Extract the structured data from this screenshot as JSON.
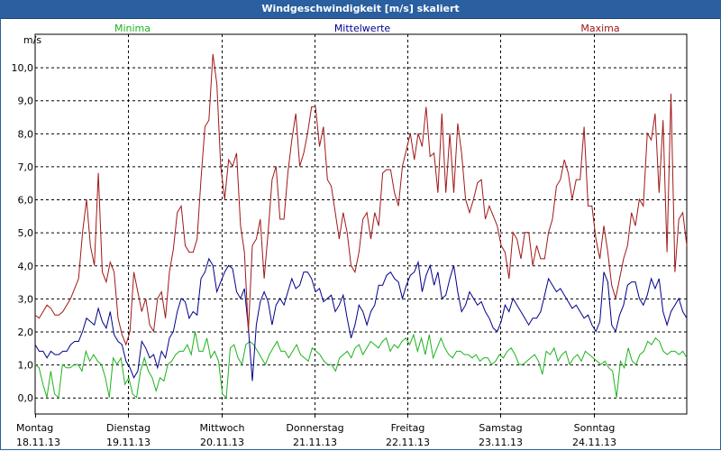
{
  "window": {
    "title": "Windgeschwindigkeit [m/s] skaliert"
  },
  "chart_data": {
    "type": "line",
    "title": "Windgeschwindigkeit [m/s] skaliert",
    "ylabel": "m/s",
    "ylim": [
      -0.5,
      11
    ],
    "yticks": [
      "0,0",
      "1,0",
      "2,0",
      "3,0",
      "4,0",
      "5,0",
      "6,0",
      "7,0",
      "8,0",
      "9,0",
      "10,0"
    ],
    "xlim": [
      0,
      7
    ],
    "days": [
      {
        "name": "Montag",
        "date": "18.11.13"
      },
      {
        "name": "Dienstag",
        "date": "19.11.13"
      },
      {
        "name": "Mittwoch",
        "date": "20.11.13"
      },
      {
        "name": "Donnerstag",
        "date": "21.11.13"
      },
      {
        "name": "Freitag",
        "date": "22.11.13"
      },
      {
        "name": "Samstag",
        "date": "23.11.13"
      },
      {
        "name": "Sonntag",
        "date": "24.11.13"
      }
    ],
    "grid": true,
    "series": [
      {
        "name": "Minima",
        "color": "#1db31d",
        "values": [
          1.0,
          0.9,
          0.4,
          0.0,
          0.8,
          0.1,
          0.0,
          1.0,
          0.9,
          0.9,
          1.0,
          1.0,
          0.8,
          1.4,
          1.1,
          1.3,
          1.1,
          1.0,
          0.6,
          0.0,
          1.2,
          1.0,
          1.2,
          0.4,
          0.6,
          0.1,
          0.0,
          0.8,
          1.2,
          0.8,
          0.6,
          0.2,
          0.6,
          0.5,
          1.0,
          1.1,
          1.3,
          1.4,
          1.4,
          1.6,
          1.3,
          2.0,
          1.4,
          1.4,
          1.8,
          1.2,
          1.4,
          1.1,
          0.1,
          0.0,
          1.5,
          1.6,
          1.2,
          1.0,
          1.6,
          1.7,
          1.6,
          1.4,
          1.2,
          1.0,
          1.3,
          1.5,
          1.7,
          1.4,
          1.4,
          1.2,
          1.4,
          1.6,
          1.3,
          1.2,
          1.1,
          1.5,
          1.4,
          1.3,
          1.1,
          1.0,
          1.0,
          0.8,
          1.2,
          1.3,
          1.4,
          1.2,
          1.5,
          1.6,
          1.3,
          1.5,
          1.7,
          1.6,
          1.5,
          1.7,
          1.8,
          1.4,
          1.6,
          1.5,
          1.7,
          1.8,
          1.6,
          1.9,
          1.4,
          1.8,
          1.3,
          1.9,
          1.2,
          1.5,
          1.8,
          1.5,
          1.3,
          1.2,
          1.4,
          1.4,
          1.3,
          1.3,
          1.2,
          1.3,
          1.1,
          1.2,
          1.2,
          1.0,
          1.1,
          1.3,
          1.2,
          1.4,
          1.5,
          1.3,
          1.0,
          1.0,
          1.1,
          1.2,
          1.3,
          1.1,
          0.7,
          1.4,
          1.3,
          1.5,
          1.1,
          1.3,
          1.4,
          1.0,
          1.2,
          1.3,
          1.1,
          1.4,
          1.3,
          1.2,
          1.1,
          1.0,
          1.1,
          0.9,
          0.8,
          0.0,
          1.1,
          0.9,
          1.5,
          1.1,
          1.0,
          1.3,
          1.4,
          1.7,
          1.6,
          1.8,
          1.7,
          1.4,
          1.3,
          1.4,
          1.4,
          1.3,
          1.4,
          1.2
        ]
      },
      {
        "name": "Mittelwerte",
        "color": "#00008b",
        "values": [
          1.6,
          1.4,
          1.4,
          1.2,
          1.4,
          1.3,
          1.3,
          1.4,
          1.4,
          1.6,
          1.7,
          1.7,
          2.0,
          2.4,
          2.3,
          2.2,
          2.7,
          2.3,
          2.1,
          2.6,
          1.9,
          1.7,
          1.6,
          1.1,
          0.9,
          0.6,
          0.8,
          1.7,
          1.5,
          1.2,
          1.3,
          0.9,
          1.4,
          1.2,
          1.8,
          2.0,
          2.6,
          3.0,
          2.9,
          2.4,
          2.6,
          2.5,
          3.6,
          3.8,
          4.2,
          4.0,
          3.2,
          3.5,
          3.8,
          4.0,
          3.9,
          3.2,
          3.0,
          3.3,
          2.1,
          0.5,
          2.2,
          2.9,
          3.2,
          2.9,
          2.2,
          2.8,
          3.0,
          2.8,
          3.2,
          3.6,
          3.3,
          3.4,
          3.8,
          3.8,
          3.6,
          3.2,
          3.3,
          2.9,
          3.0,
          3.1,
          2.6,
          2.8,
          3.1,
          2.4,
          1.8,
          2.2,
          2.8,
          2.6,
          2.2,
          2.6,
          2.8,
          3.4,
          3.4,
          3.7,
          3.8,
          3.6,
          3.5,
          3.0,
          3.4,
          3.7,
          3.8,
          4.1,
          3.2,
          3.7,
          4.0,
          3.4,
          3.8,
          3.0,
          3.1,
          3.6,
          4.0,
          3.2,
          2.6,
          2.8,
          3.2,
          3.0,
          2.8,
          2.9,
          2.6,
          2.4,
          2.1,
          2.0,
          2.3,
          2.8,
          2.6,
          3.0,
          2.8,
          2.6,
          2.4,
          2.2,
          2.4,
          2.4,
          2.6,
          3.1,
          3.6,
          3.4,
          3.2,
          3.3,
          3.1,
          2.9,
          2.7,
          2.8,
          2.6,
          2.4,
          2.5,
          2.2,
          2.0,
          2.3,
          3.8,
          3.5,
          2.2,
          2.0,
          2.5,
          2.8,
          3.4,
          3.5,
          3.5,
          3.0,
          2.8,
          3.1,
          3.6,
          3.3,
          3.6,
          2.6,
          2.2,
          2.6,
          2.8,
          3.0,
          2.6,
          2.4
        ]
      },
      {
        "name": "Maxima",
        "color": "#a01818",
        "values": [
          2.5,
          2.4,
          2.6,
          2.8,
          2.7,
          2.5,
          2.5,
          2.6,
          2.8,
          3.0,
          3.3,
          3.6,
          5.0,
          6.0,
          4.6,
          4.0,
          6.8,
          3.8,
          3.5,
          4.1,
          3.8,
          2.4,
          1.9,
          1.6,
          2.0,
          3.8,
          3.2,
          2.6,
          3.0,
          2.2,
          2.0,
          3.0,
          3.2,
          2.4,
          3.8,
          4.5,
          5.6,
          5.8,
          4.6,
          4.4,
          4.4,
          4.8,
          6.6,
          8.2,
          8.4,
          10.4,
          9.5,
          7.0,
          6.0,
          7.2,
          7.0,
          7.4,
          5.2,
          4.4,
          2.0,
          4.6,
          4.8,
          5.4,
          3.6,
          5.0,
          6.6,
          7.0,
          5.4,
          5.4,
          6.8,
          7.8,
          8.6,
          7.0,
          7.4,
          8.0,
          8.8,
          8.8,
          7.6,
          8.2,
          6.6,
          6.4,
          5.6,
          4.8,
          5.6,
          5.0,
          4.0,
          3.8,
          4.4,
          5.4,
          5.6,
          4.8,
          5.6,
          5.2,
          6.8,
          6.9,
          6.9,
          6.2,
          5.8,
          7.0,
          7.5,
          8.0,
          7.2,
          8.0,
          7.6,
          8.8,
          7.3,
          7.4,
          6.2,
          8.6,
          6.2,
          8.0,
          6.2,
          8.3,
          7.4,
          6.0,
          5.6,
          6.0,
          6.5,
          6.6,
          5.4,
          5.8,
          5.5,
          5.2,
          4.6,
          4.4,
          3.6,
          5.0,
          4.8,
          4.2,
          5.0,
          5.0,
          4.0,
          4.6,
          4.2,
          4.2,
          5.0,
          5.4,
          6.4,
          6.6,
          7.2,
          6.8,
          6.0,
          6.6,
          6.6,
          8.2,
          5.8,
          5.8,
          4.8,
          4.2,
          5.2,
          4.4,
          3.4,
          3.0,
          3.6,
          4.2,
          4.6,
          5.6,
          5.2,
          6.0,
          5.8,
          8.0,
          7.8,
          8.6,
          6.2,
          8.4,
          4.4,
          9.2,
          3.8,
          5.4,
          5.6,
          4.6
        ]
      }
    ]
  }
}
